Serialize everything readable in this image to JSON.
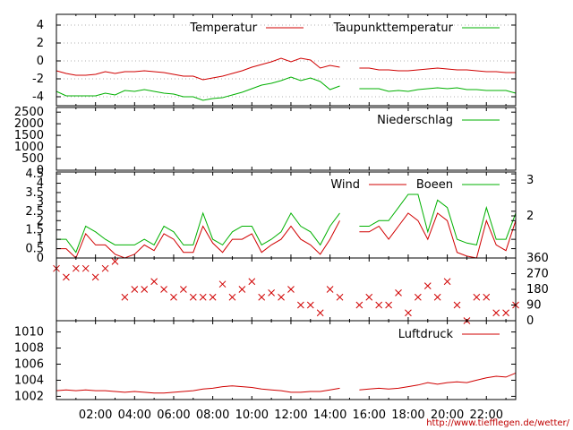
{
  "credit": "http://www.tiefflegen.de/wetter/",
  "x_ticks": [
    "02:00",
    "04:00",
    "06:00",
    "08:00",
    "10:00",
    "12:00",
    "14:00",
    "16:00",
    "18:00",
    "20:00",
    "22:00"
  ],
  "chart_data": [
    {
      "type": "line",
      "panel": "temperature",
      "ylim": [
        -5,
        5.2
      ],
      "y_ticks": [
        "4",
        "2",
        "0",
        "-2",
        "-4"
      ],
      "y_tick_values": [
        4,
        2,
        0,
        -2,
        -4
      ],
      "grid": true,
      "legend_placement": "top",
      "series": [
        {
          "name": "Temperatur",
          "color": "#d00000",
          "x": [
            0,
            0.5,
            1,
            1.5,
            2,
            2.5,
            3,
            3.5,
            4,
            4.5,
            5,
            5.5,
            6,
            6.5,
            7,
            7.5,
            8,
            8.5,
            9,
            9.5,
            10,
            10.5,
            11,
            11.5,
            12,
            12.5,
            13,
            13.5,
            14,
            14.5,
            15.5,
            16,
            16.5,
            17,
            17.5,
            18,
            18.5,
            19,
            19.5,
            20,
            20.5,
            21,
            21.5,
            22,
            22.5,
            23,
            23.5
          ],
          "y": [
            -1.1,
            -1.4,
            -1.6,
            -1.6,
            -1.5,
            -1.2,
            -1.4,
            -1.2,
            -1.2,
            -1.1,
            -1.2,
            -1.3,
            -1.5,
            -1.7,
            -1.7,
            -2.1,
            -1.9,
            -1.7,
            -1.4,
            -1.1,
            -0.7,
            -0.4,
            -0.1,
            0.3,
            -0.1,
            0.3,
            0.1,
            -0.8,
            -0.5,
            -0.7,
            -0.8,
            -0.8,
            -1.0,
            -1.0,
            -1.1,
            -1.1,
            -1.0,
            -0.9,
            -0.8,
            -0.9,
            -1.0,
            -1.0,
            -1.1,
            -1.2,
            -1.2,
            -1.3,
            -1.3
          ]
        },
        {
          "name": "Taupunkttemperatur",
          "color": "#00b000",
          "x": [
            0,
            0.5,
            1,
            1.5,
            2,
            2.5,
            3,
            3.5,
            4,
            4.5,
            5,
            5.5,
            6,
            6.5,
            7,
            7.5,
            8,
            8.5,
            9,
            9.5,
            10,
            10.5,
            11,
            11.5,
            12,
            12.5,
            13,
            13.5,
            14,
            14.5,
            15.5,
            16,
            16.5,
            17,
            17.5,
            18,
            18.5,
            19,
            19.5,
            20,
            20.5,
            21,
            21.5,
            22,
            22.5,
            23,
            23.5
          ],
          "y": [
            -3.4,
            -3.9,
            -3.9,
            -3.9,
            -3.9,
            -3.6,
            -3.8,
            -3.3,
            -3.4,
            -3.2,
            -3.4,
            -3.6,
            -3.7,
            -4.0,
            -4.0,
            -4.4,
            -4.2,
            -4.1,
            -3.8,
            -3.5,
            -3.1,
            -2.7,
            -2.5,
            -2.2,
            -1.8,
            -2.2,
            -1.9,
            -2.3,
            -3.2,
            -2.8,
            -3.1,
            -3.1,
            -3.1,
            -3.4,
            -3.3,
            -3.4,
            -3.2,
            -3.1,
            -3.0,
            -3.1,
            -3.0,
            -3.2,
            -3.2,
            -3.3,
            -3.3,
            -3.3,
            -3.6
          ]
        }
      ]
    },
    {
      "type": "line",
      "panel": "precipitation",
      "ylim": [
        0,
        2700
      ],
      "y_ticks": [
        "2500",
        "2000",
        "1500",
        "1000",
        "500",
        "0"
      ],
      "y_tick_values": [
        2500,
        2000,
        1500,
        1000,
        500,
        0
      ],
      "series": [
        {
          "name": "Niederschlag",
          "color": "#00b000",
          "x": [
            0,
            14.6,
            15.5,
            23.5
          ],
          "y": [
            1500,
            1500,
            1500,
            1500
          ],
          "segments": [
            [
              0,
              1
            ],
            [
              2,
              3
            ]
          ]
        }
      ]
    },
    {
      "type": "line",
      "panel": "wind",
      "ylim": [
        0,
        4.6
      ],
      "y_ticks": [
        "4.5",
        "4",
        "3.5",
        "3",
        "2.5",
        "2",
        "1.5",
        "1",
        "0.5",
        "0"
      ],
      "y_tick_values": [
        4.5,
        4,
        3.5,
        3,
        2.5,
        2,
        1.5,
        1,
        0.5,
        0
      ],
      "y2_ticks": [
        "3",
        "2"
      ],
      "legend_placement": "top",
      "series": [
        {
          "name": "Wind",
          "color": "#d00000",
          "x": [
            0,
            0.5,
            1,
            1.5,
            2,
            2.5,
            3,
            3.5,
            4,
            4.5,
            5,
            5.5,
            6,
            6.5,
            7,
            7.5,
            8,
            8.5,
            9,
            9.5,
            10,
            10.5,
            11,
            11.5,
            12,
            12.5,
            13,
            13.5,
            14,
            14.5,
            15.5,
            16,
            16.5,
            17,
            17.5,
            18,
            18.5,
            19,
            19.5,
            20,
            20.5,
            21,
            21.5,
            22,
            22.5,
            23,
            23.5
          ],
          "y": [
            0.5,
            0.5,
            0,
            1.3,
            0.7,
            0.7,
            0.2,
            0,
            0.2,
            0.7,
            0.4,
            1.3,
            1.0,
            0.3,
            0.3,
            1.7,
            0.8,
            0.3,
            1.0,
            1.0,
            1.3,
            0.3,
            0.7,
            1.0,
            1.7,
            1.0,
            0.7,
            0.2,
            1.0,
            2.0,
            1.4,
            1.4,
            1.7,
            1.0,
            1.7,
            2.4,
            2.0,
            1.0,
            2.4,
            2.0,
            0.3,
            0.1,
            0,
            2.0,
            0.7,
            0.4,
            2.0
          ]
        },
        {
          "name": "Boeen",
          "color": "#00b000",
          "x": [
            0,
            0.5,
            1,
            1.5,
            2,
            2.5,
            3,
            3.5,
            4,
            4.5,
            5,
            5.5,
            6,
            6.5,
            7,
            7.5,
            8,
            8.5,
            9,
            9.5,
            10,
            10.5,
            11,
            11.5,
            12,
            12.5,
            13,
            13.5,
            14,
            14.5,
            15.5,
            16,
            16.5,
            17,
            17.5,
            18,
            18.5,
            19,
            19.5,
            20,
            20.5,
            21,
            21.5,
            22,
            22.5,
            23,
            23.5
          ],
          "y": [
            1.0,
            1.0,
            0.3,
            1.7,
            1.4,
            1.0,
            0.7,
            0.7,
            0.7,
            1.0,
            0.7,
            1.7,
            1.4,
            0.7,
            0.7,
            2.4,
            1.0,
            0.7,
            1.4,
            1.7,
            1.7,
            0.7,
            1.0,
            1.4,
            2.4,
            1.7,
            1.4,
            0.7,
            1.7,
            2.4,
            1.7,
            1.7,
            2.0,
            2.0,
            2.7,
            3.4,
            3.4,
            1.4,
            3.1,
            2.7,
            1.0,
            0.8,
            0.7,
            2.7,
            1.0,
            1.0,
            2.4
          ]
        }
      ]
    },
    {
      "type": "scatter",
      "panel": "wind_direction",
      "ylim": [
        0,
        360
      ],
      "y2_ticks": [
        "360",
        "270",
        "180",
        "90",
        "0"
      ],
      "y2_tick_values": [
        360,
        270,
        180,
        90,
        0
      ],
      "series": [
        {
          "marker": "x",
          "color": "#d00000",
          "x": [
            0,
            0.5,
            1,
            1.5,
            2,
            2.5,
            3,
            3.5,
            4,
            4.5,
            5,
            5.5,
            6,
            6.5,
            7,
            7.5,
            8,
            8.5,
            9,
            9.5,
            10,
            10.5,
            11,
            11.5,
            12,
            12.5,
            13,
            13.5,
            14,
            14.5,
            15.5,
            16,
            16.5,
            17,
            17.5,
            18,
            18.5,
            19,
            19.5,
            20,
            20.5,
            21,
            21.5,
            22,
            22.5,
            23,
            23.5
          ],
          "y": [
            300,
            250,
            300,
            300,
            250,
            300,
            340,
            135,
            180,
            180,
            225,
            180,
            135,
            180,
            135,
            135,
            135,
            210,
            135,
            180,
            225,
            135,
            160,
            135,
            180,
            90,
            90,
            45,
            180,
            135,
            90,
            135,
            90,
            90,
            160,
            45,
            135,
            200,
            135,
            225,
            90,
            0,
            135,
            135,
            45,
            45,
            90
          ]
        }
      ]
    },
    {
      "type": "line",
      "panel": "pressure",
      "ylim": [
        1001.6,
        1011.4
      ],
      "y_ticks": [
        "1010",
        "1008",
        "1006",
        "1004",
        "1002"
      ],
      "y_tick_values": [
        1010,
        1008,
        1006,
        1004,
        1002
      ],
      "legend_placement": "top-right",
      "series": [
        {
          "name": "Luftdruck",
          "color": "#d00000",
          "x": [
            0,
            0.5,
            1,
            1.5,
            2,
            2.5,
            3,
            3.5,
            4,
            4.5,
            5,
            5.5,
            6,
            6.5,
            7,
            7.5,
            8,
            8.5,
            9,
            9.5,
            10,
            10.5,
            11,
            11.5,
            12,
            12.5,
            13,
            13.5,
            14,
            14.5,
            15.5,
            16,
            16.5,
            17,
            17.5,
            18,
            18.5,
            19,
            19.5,
            20,
            20.5,
            21,
            21.5,
            22,
            22.5,
            23,
            23.5
          ],
          "y": [
            1002.7,
            1002.8,
            1002.7,
            1002.8,
            1002.7,
            1002.7,
            1002.6,
            1002.5,
            1002.6,
            1002.5,
            1002.4,
            1002.4,
            1002.5,
            1002.6,
            1002.7,
            1002.9,
            1003.0,
            1003.2,
            1003.3,
            1003.2,
            1003.1,
            1002.9,
            1002.8,
            1002.7,
            1002.5,
            1002.5,
            1002.6,
            1002.6,
            1002.8,
            1003.0,
            1002.8,
            1002.9,
            1003.0,
            1002.9,
            1003.0,
            1003.2,
            1003.4,
            1003.7,
            1003.5,
            1003.7,
            1003.8,
            1003.7,
            1004.0,
            1004.3,
            1004.5,
            1004.4,
            1004.9
          ]
        }
      ]
    }
  ]
}
